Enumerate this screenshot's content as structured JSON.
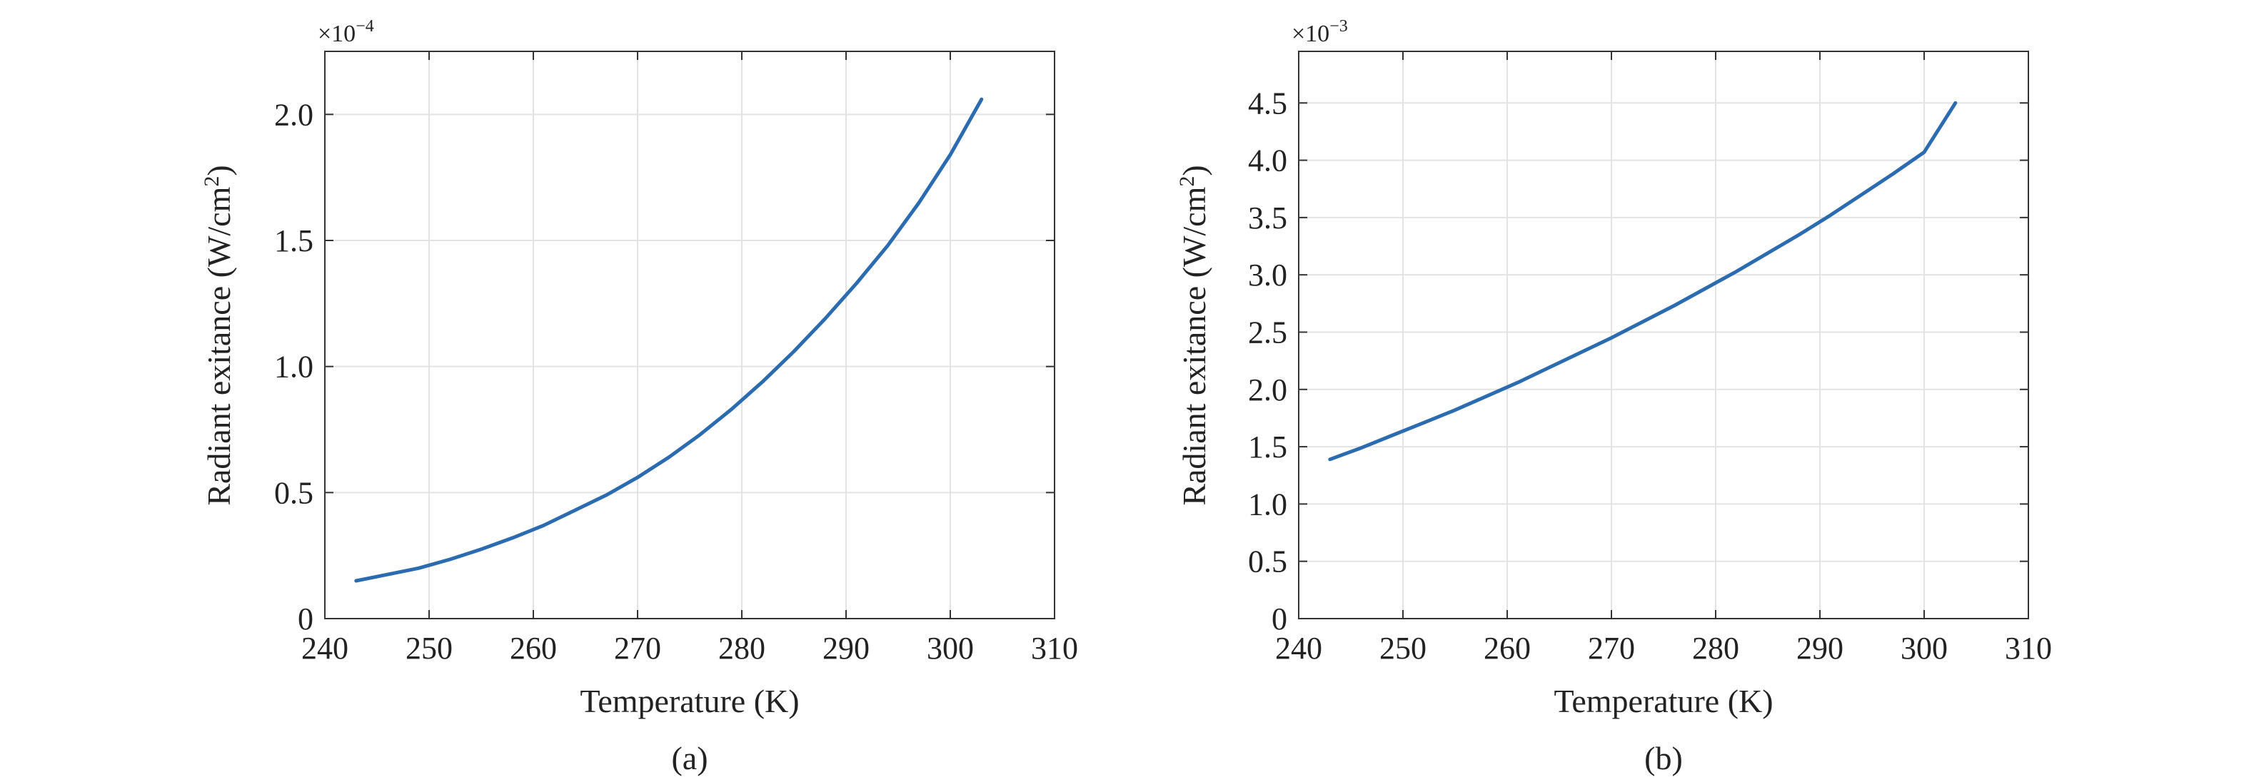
{
  "chart_data": [
    {
      "type": "line",
      "panel_label": "(a)",
      "xlabel": "Temperature (K)",
      "ylabel_text": "Radiant exitance (W/cm",
      "ylabel_sup": "2",
      "ylabel_close": ")",
      "multiplier_base": "×10",
      "multiplier_exp": "−4",
      "xlim": [
        240,
        310
      ],
      "ylim": [
        0,
        2.25
      ],
      "xticks": [
        240,
        250,
        260,
        270,
        280,
        290,
        300,
        310
      ],
      "xtick_labels": [
        "240",
        "250",
        "260",
        "270",
        "280",
        "290",
        "300",
        "310"
      ],
      "yticks": [
        0,
        0.5,
        1.0,
        1.5,
        2.0
      ],
      "ytick_labels": [
        "0",
        "0.5",
        "1.0",
        "1.5",
        "2.0"
      ],
      "grid": true,
      "series": [
        {
          "color": "#2b6cb0",
          "x": [
            243,
            246,
            249,
            252,
            255,
            258,
            261,
            264,
            267,
            270,
            273,
            276,
            279,
            282,
            285,
            288,
            291,
            294,
            297,
            300,
            303
          ],
          "y": [
            0.15,
            0.175,
            0.2,
            0.235,
            0.275,
            0.32,
            0.37,
            0.43,
            0.49,
            0.56,
            0.64,
            0.73,
            0.83,
            0.94,
            1.06,
            1.19,
            1.33,
            1.48,
            1.65,
            1.84,
            2.06
          ]
        }
      ]
    },
    {
      "type": "line",
      "panel_label": "(b)",
      "xlabel": "Temperature (K)",
      "ylabel_text": "Radiant exitance (W/cm",
      "ylabel_sup": "2",
      "ylabel_close": ")",
      "multiplier_base": "×10",
      "multiplier_exp": "−3",
      "xlim": [
        240,
        310
      ],
      "ylim": [
        0,
        4.95
      ],
      "xticks": [
        240,
        250,
        260,
        270,
        280,
        290,
        300,
        310
      ],
      "xtick_labels": [
        "240",
        "250",
        "260",
        "270",
        "280",
        "290",
        "300",
        "310"
      ],
      "yticks": [
        0,
        0.5,
        1.0,
        1.5,
        2.0,
        2.5,
        3.0,
        3.5,
        4.0,
        4.5
      ],
      "ytick_labels": [
        "0",
        "0.5",
        "1.0",
        "1.5",
        "2.0",
        "2.5",
        "3.0",
        "3.5",
        "4.0",
        "4.5"
      ],
      "grid": true,
      "series": [
        {
          "color": "#2b6cb0",
          "x": [
            243,
            246,
            249,
            252,
            255,
            258,
            261,
            264,
            267,
            270,
            273,
            276,
            279,
            282,
            285,
            288,
            291,
            294,
            297,
            300,
            303
          ],
          "y": [
            1.39,
            1.49,
            1.6,
            1.71,
            1.82,
            1.94,
            2.06,
            2.19,
            2.32,
            2.45,
            2.59,
            2.73,
            2.88,
            3.03,
            3.19,
            3.35,
            3.52,
            3.7,
            3.88,
            4.07,
            4.5
          ]
        }
      ]
    }
  ]
}
